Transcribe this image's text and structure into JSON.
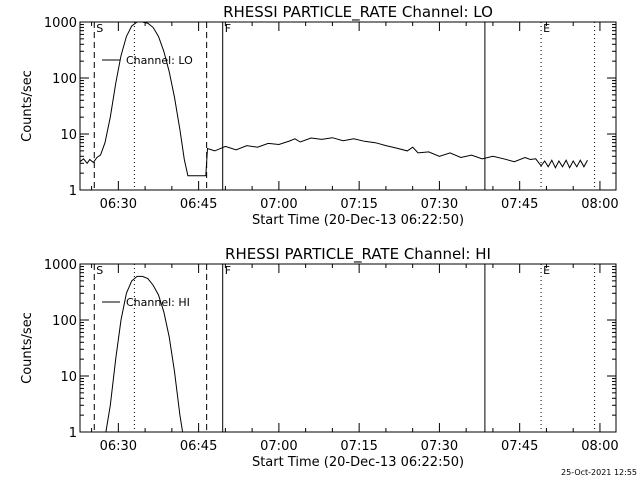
{
  "chart_data": [
    {
      "type": "line",
      "title": "RHESSI PARTICLE_RATE Channel: LO",
      "xlabel": "Start Time (20-Dec-13 06:22:50)",
      "ylabel": "Counts/sec",
      "yscale": "log",
      "ylim": [
        1,
        1000
      ],
      "xlim": [
        "06:22:50",
        "08:03:00"
      ],
      "xticks": [
        "06:30",
        "06:45",
        "07:00",
        "07:15",
        "07:30",
        "07:45",
        "08:00"
      ],
      "yticks": [
        "1",
        "10",
        "100",
        "1000"
      ],
      "legend": "Channel: LO",
      "series": [
        {
          "name": "Channel: LO",
          "points": [
            [
              "06:22:50",
              3.2
            ],
            [
              "06:23:30",
              3.6
            ],
            [
              "06:24:10",
              3.0
            ],
            [
              "06:24:40",
              3.5
            ],
            [
              "06:25:20",
              3.1
            ],
            [
              "06:26:00",
              3.8
            ],
            [
              "06:26:40",
              4.2
            ],
            [
              "06:27:30",
              7
            ],
            [
              "06:28:30",
              20
            ],
            [
              "06:29:30",
              80
            ],
            [
              "06:30:30",
              250
            ],
            [
              "06:31:30",
              550
            ],
            [
              "06:32:30",
              850
            ],
            [
              "06:33:30",
              1000
            ],
            [
              "06:34:30",
              1000
            ],
            [
              "06:35:30",
              950
            ],
            [
              "06:36:30",
              800
            ],
            [
              "06:37:30",
              550
            ],
            [
              "06:38:30",
              300
            ],
            [
              "06:39:30",
              130
            ],
            [
              "06:40:30",
              45
            ],
            [
              "06:41:30",
              12
            ],
            [
              "06:42:20",
              3.5
            ],
            [
              "06:43:00",
              1.8
            ],
            [
              "06:45:30",
              1.8
            ],
            [
              "06:46:20",
              1.8
            ],
            [
              "06:46:40",
              5.5
            ],
            [
              "06:48:00",
              5.0
            ],
            [
              "06:50:00",
              6.0
            ],
            [
              "06:52:00",
              5.2
            ],
            [
              "06:54:00",
              6.2
            ],
            [
              "06:56:00",
              5.8
            ],
            [
              "06:58:00",
              6.8
            ],
            [
              "07:00:00",
              6.5
            ],
            [
              "07:02:00",
              7.5
            ],
            [
              "07:03:00",
              8.2
            ],
            [
              "07:04:00",
              7.2
            ],
            [
              "07:06:00",
              8.5
            ],
            [
              "07:08:00",
              8.0
            ],
            [
              "07:10:00",
              8.6
            ],
            [
              "07:12:00",
              7.6
            ],
            [
              "07:14:00",
              8.2
            ],
            [
              "07:16:00",
              7.4
            ],
            [
              "07:18:00",
              7.0
            ],
            [
              "07:20:00",
              6.2
            ],
            [
              "07:22:00",
              5.6
            ],
            [
              "07:24:00",
              5.0
            ],
            [
              "07:25:00",
              5.8
            ],
            [
              "07:26:00",
              4.6
            ],
            [
              "07:28:00",
              4.8
            ],
            [
              "07:30:00",
              4.0
            ],
            [
              "07:32:00",
              4.6
            ],
            [
              "07:34:00",
              3.8
            ],
            [
              "07:36:00",
              4.2
            ],
            [
              "07:38:00",
              3.6
            ],
            [
              "07:40:00",
              4.0
            ],
            [
              "07:42:00",
              3.6
            ],
            [
              "07:44:00",
              3.2
            ],
            [
              "07:46:00",
              3.8
            ],
            [
              "07:47:00",
              3.5
            ],
            [
              "07:48:00",
              3.6
            ],
            [
              "07:49:00",
              2.7
            ],
            [
              "07:49:40",
              3.3
            ],
            [
              "07:50:20",
              2.6
            ],
            [
              "07:51:00",
              3.4
            ],
            [
              "07:51:40",
              2.5
            ],
            [
              "07:52:20",
              3.3
            ],
            [
              "07:53:00",
              2.6
            ],
            [
              "07:53:40",
              3.4
            ],
            [
              "07:54:20",
              2.5
            ],
            [
              "07:55:00",
              3.3
            ],
            [
              "07:55:40",
              2.6
            ],
            [
              "07:56:20",
              3.4
            ],
            [
              "07:57:00",
              2.6
            ],
            [
              "07:57:40",
              3.4
            ]
          ]
        }
      ],
      "markers": [
        {
          "label": "S",
          "time": "06:25:30",
          "style": "dashed"
        },
        {
          "time": "06:33:00",
          "style": "dotted"
        },
        {
          "time": "06:46:30",
          "style": "dashed"
        },
        {
          "label": "F",
          "time": "06:49:30",
          "style": "solid"
        },
        {
          "time": "07:38:30",
          "style": "solid"
        },
        {
          "label": "E",
          "time": "07:49:00",
          "style": "dotted"
        },
        {
          "time": "07:59:00",
          "style": "dotted"
        }
      ]
    },
    {
      "type": "line",
      "title": "RHESSI PARTICLE_RATE Channel: HI",
      "xlabel": "Start Time (20-Dec-13 06:22:50)",
      "ylabel": "Counts/sec",
      "yscale": "log",
      "ylim": [
        1,
        1000
      ],
      "xlim": [
        "06:22:50",
        "08:03:00"
      ],
      "xticks": [
        "06:30",
        "06:45",
        "07:00",
        "07:15",
        "07:30",
        "07:45",
        "08:00"
      ],
      "yticks": [
        "1",
        "10",
        "100",
        "1000"
      ],
      "legend": "Channel: HI",
      "series": [
        {
          "name": "Channel: HI",
          "points": [
            [
              "06:27:40",
              1.0
            ],
            [
              "06:28:30",
              3
            ],
            [
              "06:29:30",
              20
            ],
            [
              "06:30:30",
              100
            ],
            [
              "06:31:30",
              300
            ],
            [
              "06:32:30",
              500
            ],
            [
              "06:33:30",
              600
            ],
            [
              "06:34:30",
              600
            ],
            [
              "06:35:30",
              550
            ],
            [
              "06:36:30",
              420
            ],
            [
              "06:37:30",
              280
            ],
            [
              "06:38:30",
              140
            ],
            [
              "06:39:30",
              50
            ],
            [
              "06:40:30",
              12
            ],
            [
              "06:41:30",
              2
            ],
            [
              "06:42:00",
              1.0
            ]
          ]
        }
      ],
      "markers": [
        {
          "label": "S",
          "time": "06:25:30",
          "style": "dashed"
        },
        {
          "time": "06:33:00",
          "style": "dotted"
        },
        {
          "time": "06:46:30",
          "style": "dashed"
        },
        {
          "label": "F",
          "time": "06:49:30",
          "style": "solid"
        },
        {
          "time": "07:38:30",
          "style": "solid"
        },
        {
          "label": "E",
          "time": "07:49:00",
          "style": "dotted"
        },
        {
          "time": "07:59:00",
          "style": "dotted"
        }
      ]
    }
  ],
  "footer": {
    "timestamp": "25-Oct-2021 12:55"
  }
}
